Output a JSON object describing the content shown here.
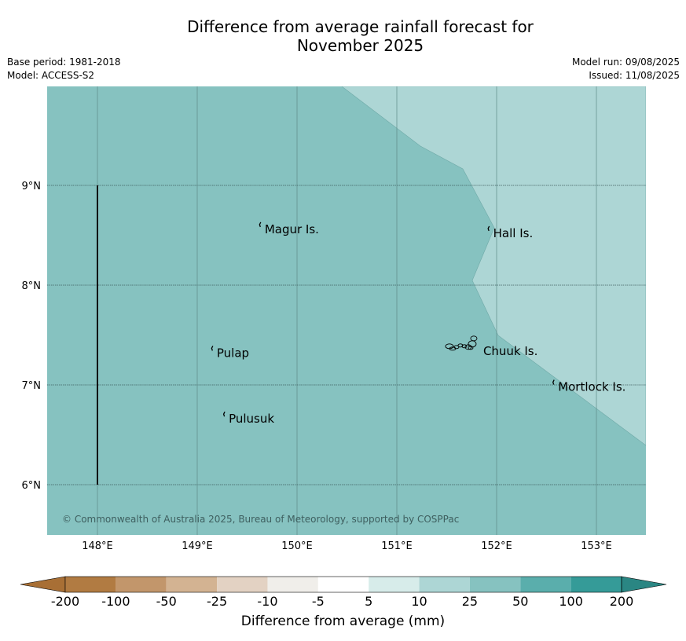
{
  "title_line1": "Difference from average rainfall forecast for",
  "title_line2": "November 2025",
  "meta_left": {
    "base_period": "Base period: 1981-2018",
    "model": "Model: ACCESS-S2"
  },
  "meta_right": {
    "model_run": "Model run: 09/08/2025",
    "issued": "Issued: 11/08/2025"
  },
  "map": {
    "lon_ticks": [
      "148°E",
      "149°E",
      "150°E",
      "151°E",
      "152°E",
      "153°E"
    ],
    "lat_ticks": [
      "9°N",
      "8°N",
      "7°N",
      "6°N"
    ],
    "background_color": "#86c2c0",
    "light_region_color": "#add6d5",
    "places": [
      {
        "name": "Magur Is.",
        "lon": 149.66,
        "lat": 8.56
      },
      {
        "name": "Hall Is.",
        "lon": 151.95,
        "lat": 8.52
      },
      {
        "name": "Pulap",
        "lon": 149.18,
        "lat": 7.32
      },
      {
        "name": "Chuuk Is.",
        "lon": 151.85,
        "lat": 7.34
      },
      {
        "name": "Mortlock Is.",
        "lon": 152.6,
        "lat": 6.98
      },
      {
        "name": "Pulusuk",
        "lon": 149.3,
        "lat": 6.66
      }
    ],
    "copyright": "© Commonwealth of Australia 2025, Bureau of Meteorology, supported by COSPPac"
  },
  "colorbar": {
    "tick_labels": [
      "-200",
      "-100",
      "-50",
      "-25",
      "-10",
      "-5",
      "5",
      "10",
      "25",
      "50",
      "100",
      "200"
    ],
    "colors": [
      "#a86f35",
      "#b17b42",
      "#c2966b",
      "#d3b392",
      "#e3d2c3",
      "#f0eeea",
      "#ffffff",
      "#d7ecea",
      "#add6d5",
      "#86c2c0",
      "#5aaeac",
      "#359b98",
      "#2a8683"
    ],
    "label": "Difference from average (mm)"
  }
}
